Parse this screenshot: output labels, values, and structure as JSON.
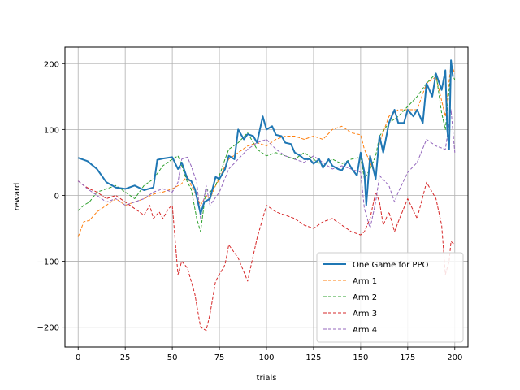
{
  "chart_data": {
    "type": "line",
    "title": "",
    "xlabel": "trials",
    "ylabel": "reward",
    "xlim": [
      -7,
      207
    ],
    "ylim": [
      -230,
      225
    ],
    "xticks": [
      0,
      25,
      50,
      75,
      100,
      125,
      150,
      175,
      200
    ],
    "yticks": [
      -200,
      -100,
      0,
      100,
      200
    ],
    "grid": true,
    "legend_position": "lower-right",
    "series": [
      {
        "name": "One Game for PPO",
        "color": "#1f77b4",
        "style": "solid",
        "x": [
          0,
          5,
          10,
          15,
          20,
          25,
          30,
          35,
          40,
          42,
          45,
          50,
          53,
          55,
          58,
          60,
          62,
          65,
          67,
          70,
          73,
          75,
          78,
          80,
          83,
          85,
          88,
          90,
          93,
          95,
          98,
          100,
          103,
          105,
          108,
          110,
          113,
          115,
          118,
          120,
          123,
          125,
          128,
          130,
          133,
          135,
          138,
          140,
          143,
          145,
          148,
          150,
          152,
          153,
          155,
          158,
          160,
          162,
          165,
          168,
          170,
          173,
          175,
          178,
          180,
          183,
          185,
          188,
          190,
          193,
          195,
          196,
          197,
          198,
          199
        ],
        "values": [
          57,
          52,
          40,
          20,
          12,
          10,
          15,
          8,
          12,
          54,
          56,
          58,
          40,
          50,
          25,
          22,
          10,
          -28,
          -10,
          -5,
          28,
          25,
          40,
          60,
          55,
          100,
          85,
          93,
          90,
          80,
          120,
          100,
          105,
          92,
          90,
          80,
          78,
          65,
          60,
          55,
          55,
          48,
          55,
          42,
          55,
          45,
          40,
          38,
          52,
          42,
          30,
          65,
          35,
          -15,
          60,
          25,
          90,
          65,
          110,
          130,
          110,
          110,
          130,
          120,
          130,
          110,
          170,
          150,
          185,
          160,
          190,
          100,
          70,
          205,
          180
        ]
      },
      {
        "name": "Arm 1",
        "color": "#ff7f0e",
        "style": "dashed",
        "x": [
          0,
          3,
          6,
          10,
          15,
          20,
          25,
          30,
          35,
          40,
          45,
          50,
          55,
          58,
          60,
          62,
          65,
          68,
          70,
          73,
          75,
          78,
          80,
          85,
          90,
          95,
          100,
          105,
          110,
          115,
          120,
          125,
          130,
          135,
          140,
          145,
          150,
          152,
          155,
          158,
          160,
          165,
          170,
          175,
          180,
          185,
          190,
          195,
          198,
          200
        ],
        "values": [
          -63,
          -40,
          -38,
          -25,
          -15,
          -5,
          -15,
          -10,
          -5,
          2,
          5,
          10,
          18,
          30,
          15,
          5,
          -15,
          0,
          -5,
          15,
          25,
          45,
          55,
          65,
          75,
          80,
          75,
          85,
          90,
          90,
          85,
          90,
          85,
          100,
          105,
          95,
          92,
          70,
          50,
          30,
          80,
          120,
          130,
          130,
          130,
          170,
          180,
          120,
          200,
          185
        ]
      },
      {
        "name": "Arm 2",
        "color": "#2ca02c",
        "style": "dashed",
        "x": [
          0,
          3,
          6,
          10,
          15,
          20,
          25,
          30,
          35,
          40,
          45,
          50,
          53,
          55,
          58,
          60,
          63,
          65,
          68,
          70,
          73,
          75,
          78,
          80,
          85,
          90,
          95,
          100,
          105,
          110,
          115,
          120,
          125,
          130,
          135,
          140,
          145,
          150,
          152,
          155,
          158,
          160,
          165,
          170,
          175,
          180,
          185,
          190,
          193,
          195,
          198,
          200
        ],
        "values": [
          -23,
          -15,
          -10,
          5,
          10,
          15,
          5,
          -5,
          15,
          25,
          45,
          55,
          60,
          45,
          20,
          10,
          -35,
          -55,
          10,
          5,
          15,
          30,
          55,
          70,
          80,
          95,
          70,
          60,
          65,
          60,
          55,
          65,
          55,
          45,
          55,
          48,
          55,
          58,
          25,
          40,
          60,
          90,
          110,
          120,
          135,
          150,
          170,
          185,
          125,
          100,
          190,
          175
        ]
      },
      {
        "name": "Arm 3",
        "color": "#d62728",
        "style": "dashed",
        "x": [
          0,
          3,
          6,
          10,
          15,
          20,
          25,
          30,
          35,
          38,
          40,
          43,
          45,
          48,
          50,
          53,
          55,
          58,
          60,
          62,
          65,
          68,
          70,
          73,
          75,
          78,
          80,
          85,
          90,
          95,
          100,
          105,
          110,
          115,
          120,
          125,
          130,
          135,
          140,
          145,
          150,
          152,
          155,
          158,
          160,
          162,
          165,
          168,
          170,
          175,
          180,
          185,
          190,
          193,
          195,
          197,
          198,
          200
        ],
        "values": [
          22,
          15,
          10,
          5,
          -5,
          0,
          -10,
          -20,
          -30,
          -15,
          -35,
          -25,
          -35,
          -20,
          -15,
          -120,
          -100,
          -110,
          -130,
          -150,
          -200,
          -205,
          -180,
          -130,
          -120,
          -105,
          -75,
          -95,
          -130,
          -65,
          -15,
          -25,
          -30,
          -35,
          -45,
          -50,
          -40,
          -35,
          -45,
          -55,
          -60,
          -55,
          -35,
          5,
          -10,
          -45,
          -25,
          -55,
          -40,
          -5,
          -35,
          20,
          -5,
          -45,
          -120,
          -100,
          -70,
          -75
        ]
      },
      {
        "name": "Arm 4",
        "color": "#9467bd",
        "style": "dashed",
        "x": [
          0,
          5,
          10,
          15,
          20,
          25,
          30,
          35,
          40,
          45,
          50,
          53,
          55,
          58,
          60,
          63,
          65,
          68,
          70,
          75,
          80,
          85,
          90,
          95,
          100,
          105,
          110,
          115,
          120,
          125,
          130,
          135,
          140,
          145,
          150,
          152,
          155,
          158,
          160,
          165,
          168,
          170,
          175,
          180,
          185,
          190,
          195,
          198,
          200
        ],
        "values": [
          22,
          10,
          0,
          -10,
          -5,
          -15,
          -10,
          -5,
          5,
          10,
          5,
          20,
          55,
          58,
          45,
          20,
          -35,
          15,
          -15,
          5,
          40,
          55,
          70,
          80,
          85,
          70,
          60,
          55,
          50,
          60,
          50,
          40,
          45,
          40,
          35,
          -20,
          -50,
          -10,
          30,
          15,
          -10,
          5,
          35,
          50,
          85,
          75,
          70,
          130,
          65
        ]
      }
    ]
  }
}
